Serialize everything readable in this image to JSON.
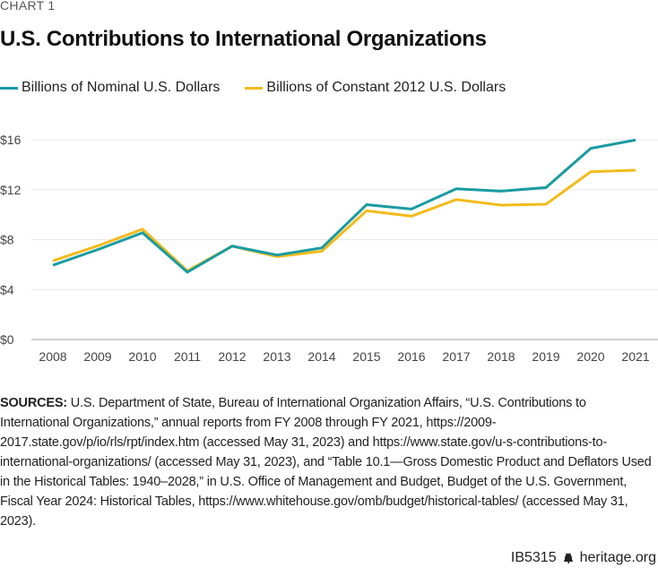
{
  "eyebrow": "CHART 1",
  "title": "U.S. Contributions to International Organizations",
  "legend": [
    {
      "label": "Billions of Nominal U.S. Dollars",
      "color": "#1A9BA1"
    },
    {
      "label": "Billions of Constant 2012 U.S. Dollars",
      "color": "#F2BB1A"
    }
  ],
  "chart_data": {
    "type": "line",
    "title": "U.S. Contributions to International Organizations",
    "xlabel": "",
    "ylabel": "",
    "x": [
      "2008",
      "2009",
      "2010",
      "2011",
      "2012",
      "2013",
      "2014",
      "2015",
      "2016",
      "2017",
      "2018",
      "2019",
      "2020",
      "2021"
    ],
    "series": [
      {
        "name": "Billions of Nominal U.S. Dollars",
        "color": "#1A9BA1",
        "values": [
          5.95,
          7.2,
          8.55,
          5.4,
          7.48,
          6.76,
          7.34,
          10.8,
          10.45,
          12.07,
          11.88,
          12.17,
          15.31,
          15.98
        ]
      },
      {
        "name": "Billions of Constant 2012 U.S. Dollars",
        "color": "#F2BB1A",
        "values": [
          6.3,
          7.5,
          8.84,
          5.5,
          7.48,
          6.64,
          7.07,
          10.31,
          9.88,
          11.21,
          10.76,
          10.83,
          13.44,
          13.56
        ]
      }
    ],
    "yticks": [
      0,
      4,
      8,
      12,
      16
    ],
    "ytick_labels": [
      "$0",
      "$4",
      "$8",
      "$12",
      "$16"
    ],
    "ylim": [
      0,
      16
    ],
    "grid": true,
    "legend_position": "top-left"
  },
  "sources": {
    "label": "SOURCES:",
    "text": "U.S. Department of State, Bureau of International Organization Affairs, “U.S. Contributions to International Organizations,” annual reports from FY 2008 through FY 2021, https://2009-2017.state.gov/p/io/rls/rpt/index.htm (accessed May 31, 2023) and https://www.state.gov/u-s-contributions-to-international-organizations/ (accessed May 31, 2023), and “Table 10.1—Gross Domestic Product and Deflators Used in the Historical Tables: 1940–2028,” in U.S. Office of Management and Budget, Budget of the U.S. Government, Fiscal Year 2024: Historical Tables, https://www.whitehouse.gov/omb/budget/historical-tables/ (accessed May 31, 2023)."
  },
  "footer": {
    "code": "IB5315",
    "icon": "liberty-bell-icon",
    "site": "heritage.org"
  }
}
